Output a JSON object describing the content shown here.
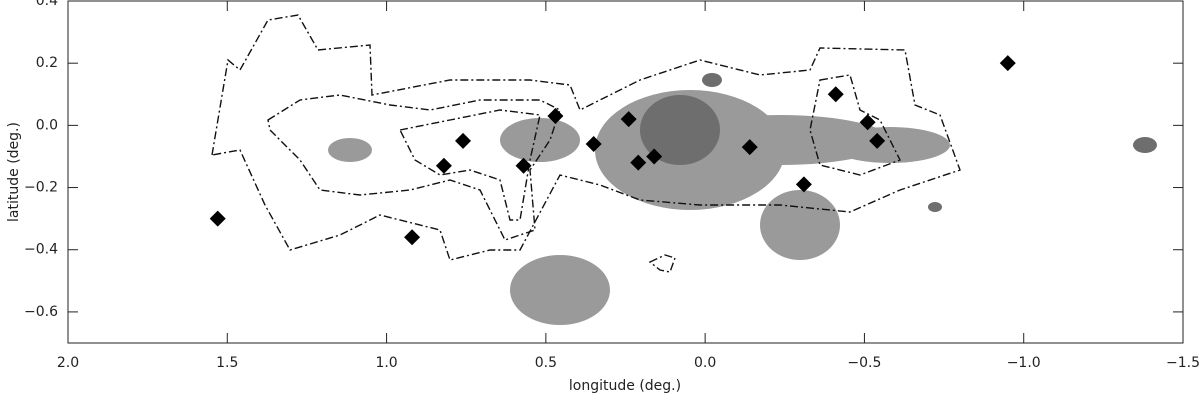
{
  "chart_data": {
    "type": "scatter",
    "x_label": "longitude (deg.)",
    "y_label": "latitude (deg.)",
    "x": [
      1.53,
      0.92,
      0.82,
      0.76,
      0.57,
      0.47,
      0.35,
      0.24,
      0.21,
      0.16,
      -0.14,
      -0.31,
      -0.41,
      -0.51,
      -0.54,
      -0.95
    ],
    "values": [
      -0.3,
      -0.36,
      -0.13,
      -0.05,
      -0.13,
      0.03,
      -0.06,
      0.02,
      -0.12,
      -0.1,
      -0.07,
      -0.19,
      0.1,
      0.01,
      -0.05,
      0.2
    ],
    "color": "#000000",
    "xlim": [
      2.0,
      -1.5
    ],
    "ylim": [
      -0.7,
      0.4
    ],
    "xticks": [
      {
        "value": 2.0,
        "label": "2.0"
      },
      {
        "value": 1.5,
        "label": "1.5"
      },
      {
        "value": 1.0,
        "label": "1.0"
      },
      {
        "value": 0.5,
        "label": "0.5"
      },
      {
        "value": 0.0,
        "label": "0.0"
      },
      {
        "value": -0.5,
        "label": "−0.5"
      },
      {
        "value": -1.0,
        "label": "−1.0"
      },
      {
        "value": -1.5,
        "label": "−1.5"
      }
    ],
    "yticks": [
      {
        "value": 0.4,
        "label": "0.4"
      },
      {
        "value": 0.2,
        "label": "0.2"
      },
      {
        "value": 0.0,
        "label": "0.0"
      },
      {
        "value": -0.2,
        "label": "−0.2"
      },
      {
        "value": -0.4,
        "label": "−0.4"
      },
      {
        "value": -0.6,
        "label": "−0.6"
      }
    ]
  }
}
